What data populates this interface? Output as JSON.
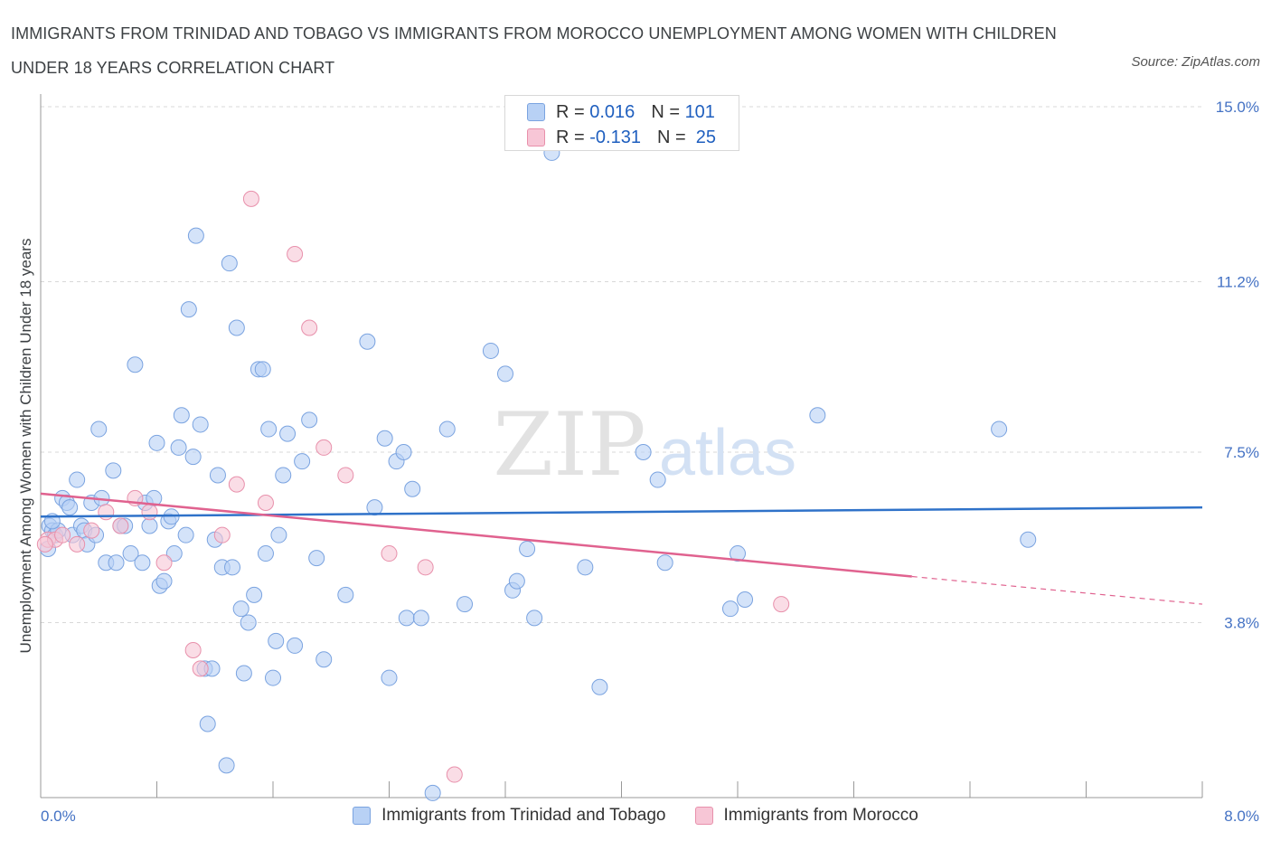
{
  "header": {
    "title": "IMMIGRANTS FROM TRINIDAD AND TOBAGO VS IMMIGRANTS FROM MOROCCO UNEMPLOYMENT AMONG WOMEN WITH CHILDREN UNDER 18 YEARS CORRELATION CHART",
    "source": "Source: ZipAtlas.com"
  },
  "watermark": {
    "zip": "ZIP",
    "atlas": "atlas"
  },
  "legend_top": {
    "rows": [
      {
        "r_label": "R =",
        "r_value": "0.016",
        "n_label": "N =",
        "n_value": "101"
      },
      {
        "r_label": "R =",
        "r_value": "-0.131",
        "n_label": "N =",
        "n_value": "25"
      }
    ]
  },
  "legend_bottom": {
    "items": [
      {
        "label": "Immigrants from Trinidad and Tobago"
      },
      {
        "label": "Immigrants from Morocco"
      }
    ]
  },
  "colors": {
    "blue_fill": "#b8d1f5",
    "blue_stroke": "#7aa3e0",
    "blue_line": "#2f72c9",
    "pink_fill": "#f7c6d6",
    "pink_stroke": "#e890ab",
    "pink_line": "#e0628f",
    "grid": "#d8d8d8",
    "tick_text": "#4472c4"
  },
  "chart_data": {
    "type": "scatter",
    "ylabel": "Unemployment Among Women with Children Under 18 years",
    "xlim": [
      0,
      8
    ],
    "ylim": [
      0,
      15
    ],
    "x_tick_labels": [
      {
        "x": 0,
        "label": "0.0%"
      },
      {
        "x": 8,
        "label": "8.0%"
      }
    ],
    "y_tick_labels": [
      {
        "y": 3.8,
        "label": "3.8%"
      },
      {
        "y": 7.5,
        "label": "7.5%"
      },
      {
        "y": 11.2,
        "label": "11.2%"
      },
      {
        "y": 15.0,
        "label": "15.0%"
      }
    ],
    "grid": true,
    "series": [
      {
        "name": "Immigrants from Trinidad and Tobago",
        "trend": {
          "x": [
            0,
            8
          ],
          "y": [
            6.1,
            6.3
          ]
        },
        "points": [
          [
            0.05,
            5.4
          ],
          [
            0.06,
            5.9
          ],
          [
            0.08,
            5.8
          ],
          [
            0.1,
            5.7
          ],
          [
            0.12,
            5.8
          ],
          [
            0.15,
            6.5
          ],
          [
            0.18,
            6.4
          ],
          [
            0.2,
            6.3
          ],
          [
            0.22,
            5.7
          ],
          [
            0.25,
            6.9
          ],
          [
            0.28,
            5.9
          ],
          [
            0.3,
            5.8
          ],
          [
            0.32,
            5.5
          ],
          [
            0.35,
            6.4
          ],
          [
            0.38,
            5.7
          ],
          [
            0.4,
            8.0
          ],
          [
            0.42,
            6.5
          ],
          [
            0.45,
            5.1
          ],
          [
            0.5,
            7.1
          ],
          [
            0.52,
            5.1
          ],
          [
            0.55,
            5.9
          ],
          [
            0.58,
            5.9
          ],
          [
            0.62,
            5.3
          ],
          [
            0.65,
            9.4
          ],
          [
            0.7,
            5.1
          ],
          [
            0.72,
            6.4
          ],
          [
            0.75,
            5.9
          ],
          [
            0.78,
            6.5
          ],
          [
            0.8,
            7.7
          ],
          [
            0.82,
            4.6
          ],
          [
            0.85,
            4.7
          ],
          [
            0.88,
            6.0
          ],
          [
            0.9,
            6.1
          ],
          [
            0.92,
            5.3
          ],
          [
            0.95,
            7.6
          ],
          [
            0.97,
            8.3
          ],
          [
            1.0,
            5.7
          ],
          [
            1.02,
            10.6
          ],
          [
            1.05,
            7.4
          ],
          [
            1.07,
            12.2
          ],
          [
            1.1,
            8.1
          ],
          [
            1.13,
            2.8
          ],
          [
            1.15,
            1.6
          ],
          [
            1.18,
            2.8
          ],
          [
            1.2,
            5.6
          ],
          [
            1.22,
            7.0
          ],
          [
            1.25,
            5.0
          ],
          [
            1.28,
            0.7
          ],
          [
            1.3,
            11.6
          ],
          [
            1.32,
            5.0
          ],
          [
            1.35,
            10.2
          ],
          [
            1.38,
            4.1
          ],
          [
            1.4,
            2.7
          ],
          [
            1.43,
            3.8
          ],
          [
            1.47,
            4.4
          ],
          [
            1.5,
            9.3
          ],
          [
            1.53,
            9.3
          ],
          [
            1.55,
            5.3
          ],
          [
            1.57,
            8.0
          ],
          [
            1.6,
            2.6
          ],
          [
            1.62,
            3.4
          ],
          [
            1.64,
            5.7
          ],
          [
            1.67,
            7.0
          ],
          [
            1.7,
            7.9
          ],
          [
            1.75,
            3.3
          ],
          [
            1.8,
            7.3
          ],
          [
            1.85,
            8.2
          ],
          [
            1.9,
            5.2
          ],
          [
            1.95,
            3.0
          ],
          [
            2.1,
            4.4
          ],
          [
            2.25,
            9.9
          ],
          [
            2.3,
            6.3
          ],
          [
            2.37,
            7.8
          ],
          [
            2.4,
            2.6
          ],
          [
            2.45,
            7.3
          ],
          [
            2.5,
            7.5
          ],
          [
            2.52,
            3.9
          ],
          [
            2.56,
            6.7
          ],
          [
            2.62,
            3.9
          ],
          [
            2.7,
            0.1
          ],
          [
            2.8,
            8.0
          ],
          [
            2.92,
            4.2
          ],
          [
            3.1,
            9.7
          ],
          [
            3.2,
            9.2
          ],
          [
            3.25,
            4.5
          ],
          [
            3.28,
            4.7
          ],
          [
            3.35,
            5.4
          ],
          [
            3.4,
            3.9
          ],
          [
            3.52,
            14.0
          ],
          [
            3.75,
            5.0
          ],
          [
            3.85,
            2.4
          ],
          [
            4.15,
            7.5
          ],
          [
            4.25,
            6.9
          ],
          [
            4.3,
            5.1
          ],
          [
            4.75,
            4.1
          ],
          [
            4.8,
            5.3
          ],
          [
            4.85,
            4.3
          ],
          [
            5.35,
            8.3
          ],
          [
            6.6,
            8.0
          ],
          [
            6.8,
            5.6
          ],
          [
            0.08,
            6.0
          ]
        ]
      },
      {
        "name": "Immigrants from Morocco",
        "trend": {
          "x": [
            0,
            6
          ],
          "y": [
            6.6,
            4.8
          ]
        },
        "trend_dashed": {
          "x": [
            6,
            8
          ],
          "y": [
            4.8,
            4.2
          ]
        },
        "points": [
          [
            0.05,
            5.6
          ],
          [
            0.1,
            5.6
          ],
          [
            0.15,
            5.7
          ],
          [
            0.25,
            5.5
          ],
          [
            0.35,
            5.8
          ],
          [
            0.45,
            6.2
          ],
          [
            0.55,
            5.9
          ],
          [
            0.65,
            6.5
          ],
          [
            0.75,
            6.2
          ],
          [
            0.85,
            5.1
          ],
          [
            1.05,
            3.2
          ],
          [
            1.1,
            2.8
          ],
          [
            1.25,
            5.7
          ],
          [
            1.35,
            6.8
          ],
          [
            1.45,
            13.0
          ],
          [
            1.55,
            6.4
          ],
          [
            1.75,
            11.8
          ],
          [
            1.85,
            10.2
          ],
          [
            1.95,
            7.6
          ],
          [
            2.1,
            7.0
          ],
          [
            2.4,
            5.3
          ],
          [
            2.65,
            5.0
          ],
          [
            2.85,
            0.5
          ],
          [
            5.1,
            4.2
          ],
          [
            0.03,
            5.5
          ]
        ]
      }
    ]
  }
}
